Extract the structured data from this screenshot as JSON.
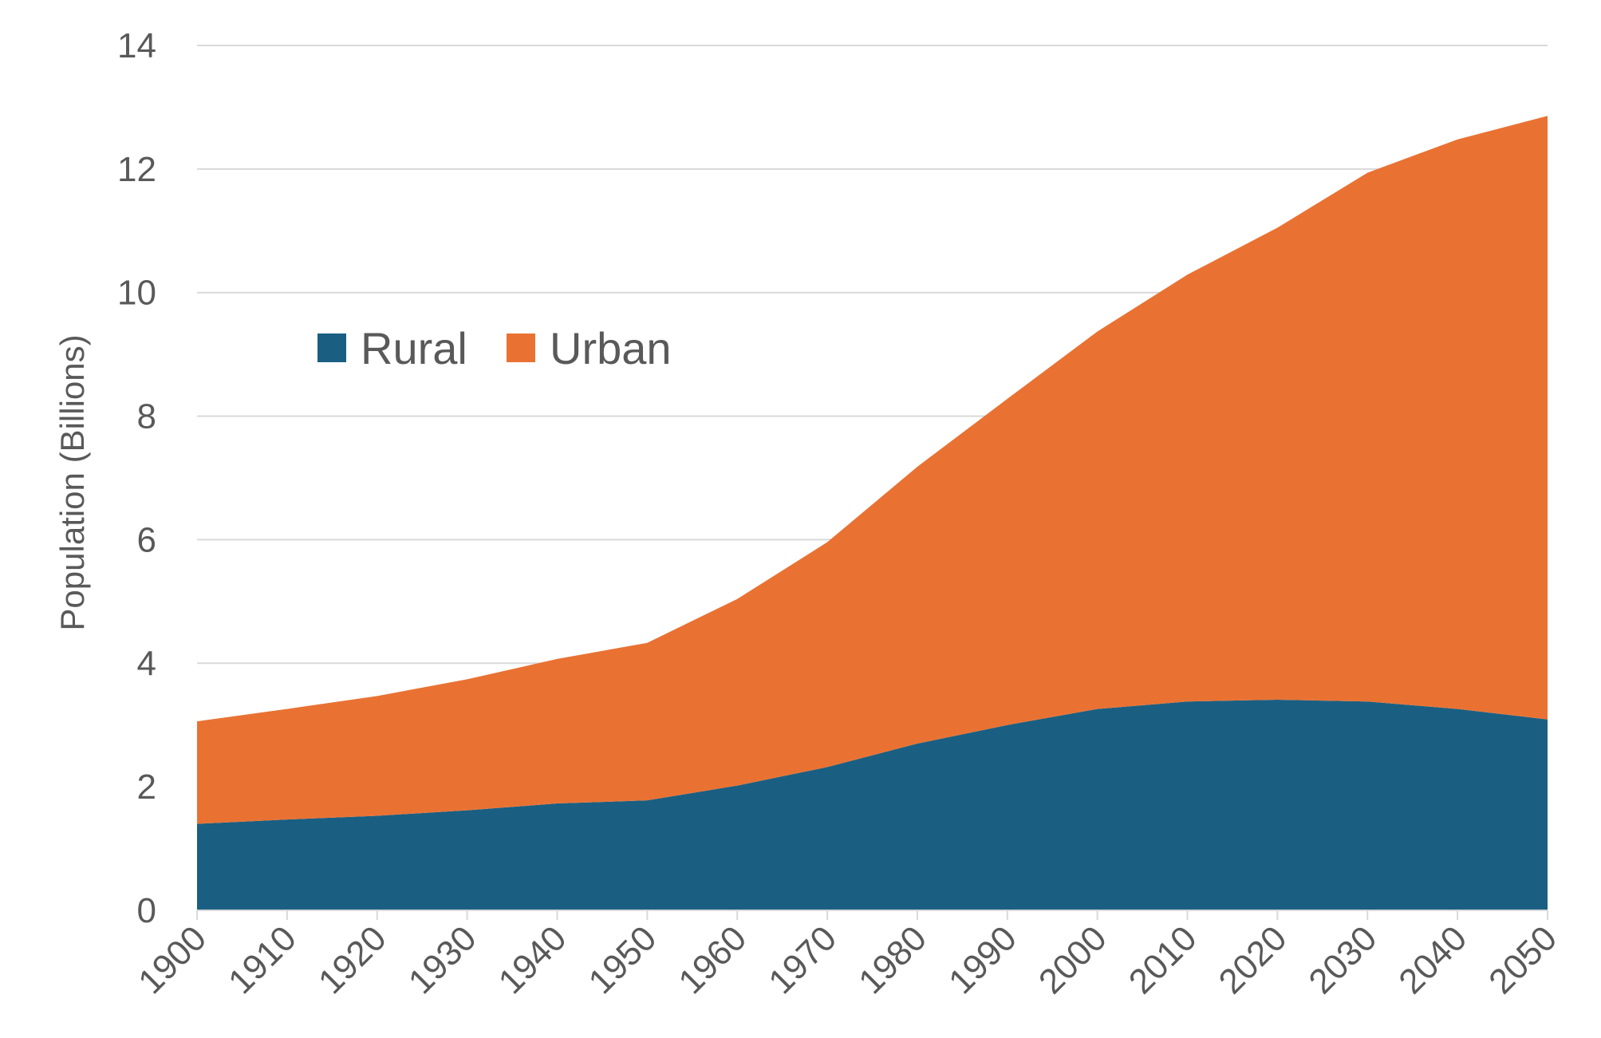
{
  "chart_data": {
    "type": "area",
    "stacked": true,
    "title": "",
    "xlabel": "",
    "ylabel": "Population (Billions)",
    "ylim": [
      0,
      14
    ],
    "yticks": [
      0,
      2,
      4,
      6,
      8,
      10,
      12,
      14
    ],
    "grid": true,
    "legend_position": "upper-left",
    "categories": [
      "1900",
      "1910",
      "1920",
      "1930",
      "1940",
      "1950",
      "1960",
      "1970",
      "1980",
      "1990",
      "2000",
      "2010",
      "2020",
      "2030",
      "2040",
      "2050"
    ],
    "series": [
      {
        "name": "Rural",
        "color": "#1a5f82",
        "values": [
          1.4,
          1.47,
          1.53,
          1.62,
          1.73,
          1.78,
          2.02,
          2.32,
          2.7,
          3.0,
          3.26,
          3.38,
          3.41,
          3.38,
          3.26,
          3.09
        ]
      },
      {
        "name": "Urban",
        "color": "#e97233",
        "values": [
          1.66,
          1.79,
          1.94,
          2.12,
          2.34,
          2.55,
          3.02,
          3.64,
          4.48,
          5.28,
          6.11,
          6.91,
          7.64,
          8.56,
          9.22,
          9.77
        ]
      }
    ]
  }
}
